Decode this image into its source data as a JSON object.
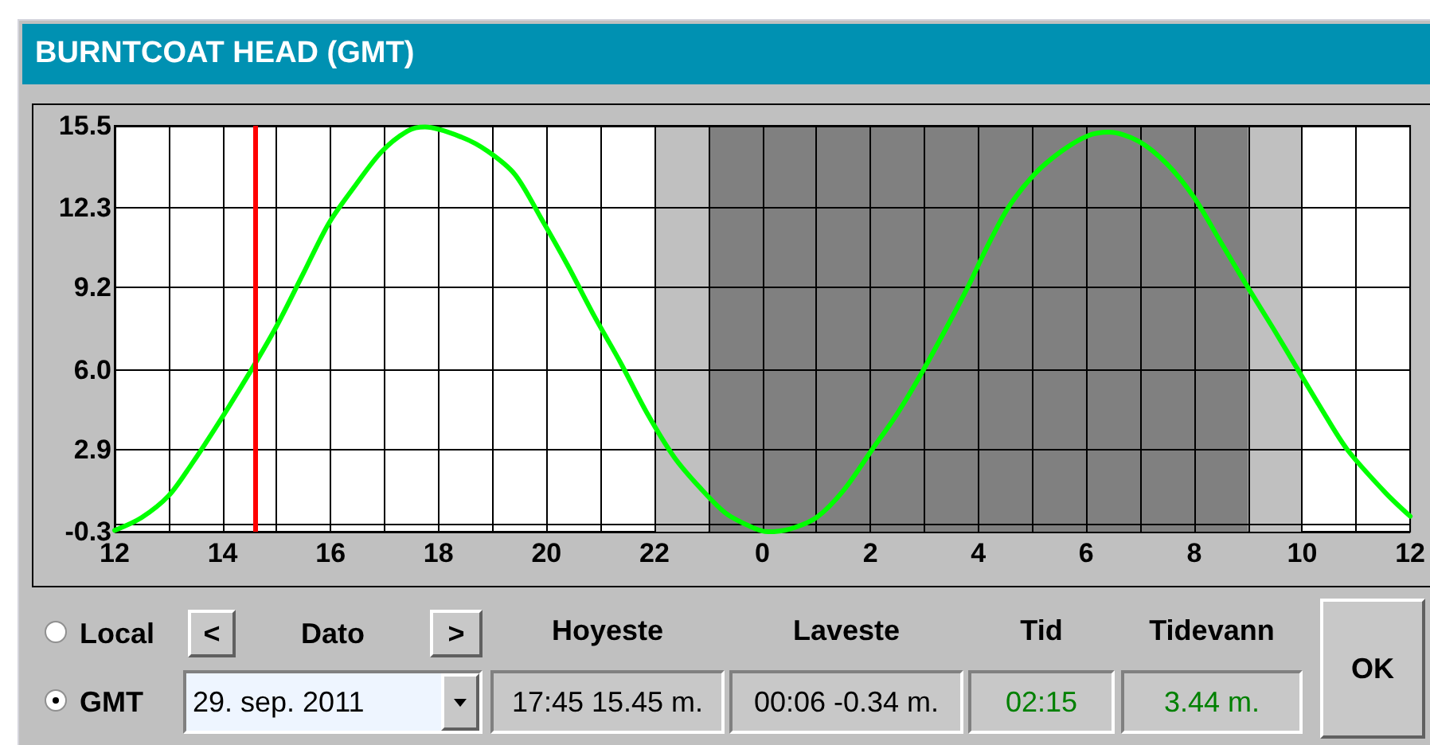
{
  "chart_data": {
    "type": "line",
    "title": "BURNTCOAT HEAD (GMT)",
    "x": [
      "2011-09-29T12:00",
      "2011-09-29T12:30",
      "2011-09-29T13:00",
      "2011-09-29T13:25",
      "2011-09-29T13:55",
      "2011-09-29T14:32",
      "2011-09-29T15:00",
      "2011-09-29T15:29",
      "2011-09-29T15:58",
      "2011-09-29T16:28",
      "2011-09-29T16:57",
      "2011-09-29T17:26",
      "2011-09-29T17:45",
      "2011-09-29T18:26",
      "2011-09-29T18:55",
      "2011-09-29T19:25",
      "2011-09-29T19:54",
      "2011-09-29T20:23",
      "2011-09-29T20:53",
      "2011-09-29T21:22",
      "2011-09-29T21:52",
      "2011-09-29T22:22",
      "2011-09-29T22:51",
      "2011-09-29T23:20",
      "2011-09-29T23:50",
      "2011-09-30T00:06",
      "2011-09-30T00:30",
      "2011-09-30T01:00",
      "2011-09-30T01:30",
      "2011-09-30T02:02",
      "2011-09-30T02:30",
      "2011-09-30T02:59",
      "2011-09-30T03:24",
      "2011-09-30T03:48",
      "2011-09-30T04:10",
      "2011-09-30T04:33",
      "2011-09-30T05:02",
      "2011-09-30T05:32",
      "2011-09-30T06:01",
      "2011-09-30T06:25",
      "2011-09-30T06:58",
      "2011-09-30T07:30",
      "2011-09-30T08:00",
      "2011-09-30T08:29",
      "2011-09-30T08:58",
      "2011-09-30T09:28",
      "2011-09-30T09:57",
      "2011-09-30T10:21",
      "2011-09-30T10:50",
      "2011-09-30T11:33",
      "2011-09-30T12:00"
    ],
    "series": [
      {
        "color": "#00ff00",
        "values": [
          -0.25,
          0.25,
          1.1,
          2.3,
          3.9,
          6.0,
          7.7,
          9.7,
          11.7,
          13.2,
          14.5,
          15.3,
          15.45,
          15.05,
          14.5,
          13.6,
          11.9,
          10.1,
          8.1,
          6.3,
          4.3,
          2.6,
          1.4,
          0.4,
          -0.15,
          -0.3,
          -0.2,
          0.25,
          1.3,
          2.9,
          4.3,
          6.0,
          7.6,
          9.2,
          10.8,
          12.3,
          13.6,
          14.5,
          15.1,
          15.25,
          14.9,
          14.0,
          12.7,
          11.0,
          9.3,
          7.6,
          5.9,
          4.5,
          2.9,
          1.2,
          0.3
        ]
      }
    ],
    "xlim": [
      "2011-09-29T12:00",
      "2011-09-30T12:00"
    ],
    "xticks": [
      {
        "value": "2011-09-29T12:00",
        "label": "12"
      },
      {
        "value": "2011-09-29T13:00",
        "label": null
      },
      {
        "value": "2011-09-29T14:00",
        "label": "14"
      },
      {
        "value": "2011-09-29T15:00",
        "label": null
      },
      {
        "value": "2011-09-29T16:00",
        "label": "16"
      },
      {
        "value": "2011-09-29T17:00",
        "label": null
      },
      {
        "value": "2011-09-29T18:00",
        "label": "18"
      },
      {
        "value": "2011-09-29T19:00",
        "label": null
      },
      {
        "value": "2011-09-29T20:00",
        "label": "20"
      },
      {
        "value": "2011-09-29T21:00",
        "label": null
      },
      {
        "value": "2011-09-29T22:00",
        "label": "22"
      },
      {
        "value": "2011-09-29T23:00",
        "label": null
      },
      {
        "value": "2011-09-30T00:00",
        "label": "0"
      },
      {
        "value": "2011-09-30T01:00",
        "label": null
      },
      {
        "value": "2011-09-30T02:00",
        "label": "2"
      },
      {
        "value": "2011-09-30T03:00",
        "label": null
      },
      {
        "value": "2011-09-30T04:00",
        "label": "4"
      },
      {
        "value": "2011-09-30T05:00",
        "label": null
      },
      {
        "value": "2011-09-30T06:00",
        "label": "6"
      },
      {
        "value": "2011-09-30T07:00",
        "label": null
      },
      {
        "value": "2011-09-30T08:00",
        "label": "8"
      },
      {
        "value": "2011-09-30T09:00",
        "label": null
      },
      {
        "value": "2011-09-30T10:00",
        "label": "10"
      },
      {
        "value": "2011-09-30T11:00",
        "label": null
      },
      {
        "value": "2011-09-30T12:00",
        "label": "12"
      }
    ],
    "ylim": [
      -0.3,
      15.5
    ],
    "yticks": [
      -0.3,
      2.9,
      {
        "value": 6,
        "label": "6.0"
      },
      9.2,
      12.3,
      15.5
    ],
    "grid": true,
    "marker": "none",
    "line_style": "solid",
    "ref_lines": [
      {
        "axis": "x",
        "value": "2011-09-29T14:36",
        "color": "#ff0000"
      }
    ],
    "bands": [
      {
        "axis": "x",
        "from": "2011-09-29T22:00",
        "to": "2011-09-29T23:00",
        "color": "#c0c0c0"
      },
      {
        "axis": "x",
        "from": "2011-09-29T23:00",
        "to": "2011-09-30T09:00",
        "color": "#808080"
      },
      {
        "axis": "x",
        "from": "2011-09-30T09:00",
        "to": "2011-09-30T10:00",
        "color": "#c0c0c0"
      }
    ],
    "annotations": [
      "Local",
      "<",
      "Dato",
      ">",
      "Hoyeste",
      "Laveste",
      "Tid",
      "Tidevann",
      "OK",
      "GMT",
      "29. sep. 2011",
      "17:45 15.45 m.",
      "00:06 -0.34 m.",
      "02:15",
      "3.44 m."
    ]
  }
}
